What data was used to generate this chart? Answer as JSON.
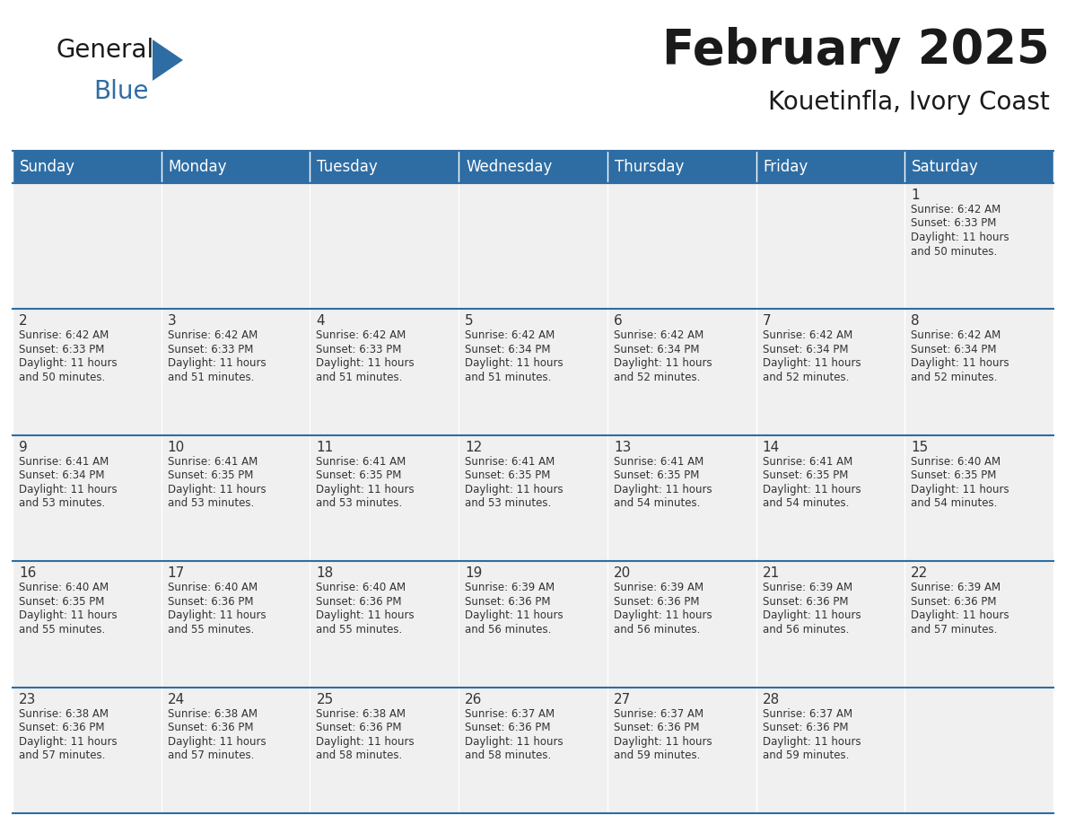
{
  "title": "February 2025",
  "subtitle": "Kouetinfla, Ivory Coast",
  "header_bg": "#2E6DA4",
  "header_text": "#FFFFFF",
  "cell_bg": "#F0F0F0",
  "day_headers": [
    "Sunday",
    "Monday",
    "Tuesday",
    "Wednesday",
    "Thursday",
    "Friday",
    "Saturday"
  ],
  "title_color": "#1a1a1a",
  "subtitle_color": "#1a1a1a",
  "line_color": "#2E6DA4",
  "text_color": "#333333",
  "days": [
    {
      "day": 1,
      "col": 6,
      "row": 0,
      "sunrise": "6:42 AM",
      "sunset": "6:33 PM",
      "daylight": "11 hours and 50 minutes."
    },
    {
      "day": 2,
      "col": 0,
      "row": 1,
      "sunrise": "6:42 AM",
      "sunset": "6:33 PM",
      "daylight": "11 hours and 50 minutes."
    },
    {
      "day": 3,
      "col": 1,
      "row": 1,
      "sunrise": "6:42 AM",
      "sunset": "6:33 PM",
      "daylight": "11 hours and 51 minutes."
    },
    {
      "day": 4,
      "col": 2,
      "row": 1,
      "sunrise": "6:42 AM",
      "sunset": "6:33 PM",
      "daylight": "11 hours and 51 minutes."
    },
    {
      "day": 5,
      "col": 3,
      "row": 1,
      "sunrise": "6:42 AM",
      "sunset": "6:34 PM",
      "daylight": "11 hours and 51 minutes."
    },
    {
      "day": 6,
      "col": 4,
      "row": 1,
      "sunrise": "6:42 AM",
      "sunset": "6:34 PM",
      "daylight": "11 hours and 52 minutes."
    },
    {
      "day": 7,
      "col": 5,
      "row": 1,
      "sunrise": "6:42 AM",
      "sunset": "6:34 PM",
      "daylight": "11 hours and 52 minutes."
    },
    {
      "day": 8,
      "col": 6,
      "row": 1,
      "sunrise": "6:42 AM",
      "sunset": "6:34 PM",
      "daylight": "11 hours and 52 minutes."
    },
    {
      "day": 9,
      "col": 0,
      "row": 2,
      "sunrise": "6:41 AM",
      "sunset": "6:34 PM",
      "daylight": "11 hours and 53 minutes."
    },
    {
      "day": 10,
      "col": 1,
      "row": 2,
      "sunrise": "6:41 AM",
      "sunset": "6:35 PM",
      "daylight": "11 hours and 53 minutes."
    },
    {
      "day": 11,
      "col": 2,
      "row": 2,
      "sunrise": "6:41 AM",
      "sunset": "6:35 PM",
      "daylight": "11 hours and 53 minutes."
    },
    {
      "day": 12,
      "col": 3,
      "row": 2,
      "sunrise": "6:41 AM",
      "sunset": "6:35 PM",
      "daylight": "11 hours and 53 minutes."
    },
    {
      "day": 13,
      "col": 4,
      "row": 2,
      "sunrise": "6:41 AM",
      "sunset": "6:35 PM",
      "daylight": "11 hours and 54 minutes."
    },
    {
      "day": 14,
      "col": 5,
      "row": 2,
      "sunrise": "6:41 AM",
      "sunset": "6:35 PM",
      "daylight": "11 hours and 54 minutes."
    },
    {
      "day": 15,
      "col": 6,
      "row": 2,
      "sunrise": "6:40 AM",
      "sunset": "6:35 PM",
      "daylight": "11 hours and 54 minutes."
    },
    {
      "day": 16,
      "col": 0,
      "row": 3,
      "sunrise": "6:40 AM",
      "sunset": "6:35 PM",
      "daylight": "11 hours and 55 minutes."
    },
    {
      "day": 17,
      "col": 1,
      "row": 3,
      "sunrise": "6:40 AM",
      "sunset": "6:36 PM",
      "daylight": "11 hours and 55 minutes."
    },
    {
      "day": 18,
      "col": 2,
      "row": 3,
      "sunrise": "6:40 AM",
      "sunset": "6:36 PM",
      "daylight": "11 hours and 55 minutes."
    },
    {
      "day": 19,
      "col": 3,
      "row": 3,
      "sunrise": "6:39 AM",
      "sunset": "6:36 PM",
      "daylight": "11 hours and 56 minutes."
    },
    {
      "day": 20,
      "col": 4,
      "row": 3,
      "sunrise": "6:39 AM",
      "sunset": "6:36 PM",
      "daylight": "11 hours and 56 minutes."
    },
    {
      "day": 21,
      "col": 5,
      "row": 3,
      "sunrise": "6:39 AM",
      "sunset": "6:36 PM",
      "daylight": "11 hours and 56 minutes."
    },
    {
      "day": 22,
      "col": 6,
      "row": 3,
      "sunrise": "6:39 AM",
      "sunset": "6:36 PM",
      "daylight": "11 hours and 57 minutes."
    },
    {
      "day": 23,
      "col": 0,
      "row": 4,
      "sunrise": "6:38 AM",
      "sunset": "6:36 PM",
      "daylight": "11 hours and 57 minutes."
    },
    {
      "day": 24,
      "col": 1,
      "row": 4,
      "sunrise": "6:38 AM",
      "sunset": "6:36 PM",
      "daylight": "11 hours and 57 minutes."
    },
    {
      "day": 25,
      "col": 2,
      "row": 4,
      "sunrise": "6:38 AM",
      "sunset": "6:36 PM",
      "daylight": "11 hours and 58 minutes."
    },
    {
      "day": 26,
      "col": 3,
      "row": 4,
      "sunrise": "6:37 AM",
      "sunset": "6:36 PM",
      "daylight": "11 hours and 58 minutes."
    },
    {
      "day": 27,
      "col": 4,
      "row": 4,
      "sunrise": "6:37 AM",
      "sunset": "6:36 PM",
      "daylight": "11 hours and 59 minutes."
    },
    {
      "day": 28,
      "col": 5,
      "row": 4,
      "sunrise": "6:37 AM",
      "sunset": "6:36 PM",
      "daylight": "11 hours and 59 minutes."
    }
  ],
  "num_rows": 5,
  "logo_text1": "General",
  "logo_text2": "Blue",
  "logo_color1": "#1a1a1a",
  "logo_color2": "#2E6DA4",
  "fig_width": 11.88,
  "fig_height": 9.18,
  "dpi": 100
}
